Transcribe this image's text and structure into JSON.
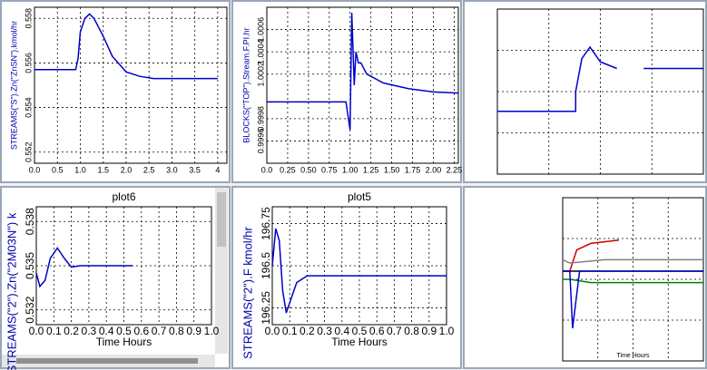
{
  "chart_data": [
    {
      "type": "line",
      "ylabel": "STREAMS(\"S\").Zn(\"ZnSN\").kmol/hr",
      "color": "#0000cc",
      "grid": true,
      "x": [
        0,
        0.5,
        0.9,
        0.95,
        1.0,
        1.1,
        1.2,
        1.3,
        1.5,
        1.7,
        2.0,
        2.3,
        2.6,
        3,
        4
      ],
      "values": [
        0.5557,
        0.5557,
        0.5557,
        0.5562,
        0.5574,
        0.558,
        0.5582,
        0.558,
        0.5572,
        0.5563,
        0.5556,
        0.5554,
        0.5553,
        0.5553,
        0.5553
      ],
      "xlim": [
        0,
        4.2
      ],
      "ylim": [
        0.5515,
        0.5585
      ],
      "xticks": [
        {
          "value": 0,
          "label": "0.0"
        },
        0.5,
        {
          "value": 1,
          "label": "1.0"
        },
        1.5,
        {
          "value": 2,
          "label": "2.0"
        },
        2.5,
        {
          "value": 3,
          "label": "3.0"
        },
        3.5,
        4
      ],
      "yticks": [
        0.552,
        0.554,
        0.556,
        0.558
      ]
    },
    {
      "type": "line",
      "ylabel": "BLOCKS(\"TOP\").Stream.F.PI.hr",
      "color": "#0000cc",
      "grid": true,
      "x": [
        0,
        0.95,
        1.0,
        1.02,
        1.05,
        1.07,
        1.1,
        1.13,
        1.2,
        1.4,
        1.7,
        2.0,
        2.3
      ],
      "values": [
        0.99995,
        0.99995,
        0.9997,
        1.00075,
        1.0001,
        1.0004,
        1.0003,
        1.0003,
        1.0002,
        1.00012,
        1.00007,
        1.00004,
        1.00003
      ],
      "xlim": [
        0,
        2.3
      ],
      "ylim": [
        0.9994,
        1.0008
      ],
      "xticks": [
        {
          "value": 0,
          "label": "0.0"
        },
        0.25,
        {
          "value": 0.5,
          "label": "0.50"
        },
        0.75,
        {
          "value": 1,
          "label": "1.00"
        },
        1.25,
        {
          "value": 1.5,
          "label": "1.50"
        },
        1.75,
        {
          "value": 2,
          "label": "2.00"
        },
        2.25
      ],
      "yticks": [
        0.9996,
        0.9998,
        1.0002,
        1.0004,
        1.0006
      ]
    },
    {
      "type": "line",
      "color": "#0000cc",
      "grid": true,
      "x": [
        0,
        0.38,
        0.38,
        0.41,
        0.45,
        0.5,
        0.58,
        0.64,
        0.71,
        1.0
      ],
      "values": [
        0.38,
        0.38,
        0.5,
        0.7,
        0.77,
        0.68,
        0.64,
        null,
        0.64,
        0.64
      ],
      "xlim": [
        0,
        1
      ],
      "ylim": [
        0,
        1
      ],
      "xticks": [
        0.25,
        0.5,
        0.75
      ],
      "yticks": [
        0.25,
        0.5,
        0.75
      ]
    },
    {
      "type": "line",
      "title": "plot6",
      "ylabel": "STREAMS(\"2\").Zn(\"2M03N\") k",
      "xlabel": "Time Hours",
      "color": "#0000cc",
      "grid": true,
      "x": [
        0,
        0.02,
        0.05,
        0.08,
        0.12,
        0.16,
        0.2,
        0.25,
        0.3,
        0.55
      ],
      "values": [
        0.5345,
        0.5336,
        0.534,
        0.5355,
        0.5362,
        0.5355,
        0.5349,
        0.535,
        0.535,
        0.535
      ],
      "xlim": [
        0,
        1
      ],
      "ylim": [
        0.531,
        0.539
      ],
      "xticks": [
        {
          "value": 0,
          "label": "0.0"
        },
        0.1,
        0.2,
        0.3,
        0.4,
        0.5,
        0.6,
        0.7,
        0.8,
        0.9,
        {
          "value": 1,
          "label": "1.0"
        }
      ],
      "yticks": [
        0.532,
        0.535,
        0.538
      ]
    },
    {
      "type": "line",
      "title": "plot5",
      "ylabel": "STREAMS(\"2\").F kmol/hr",
      "xlabel": "Time Hours",
      "color": "#0000cc",
      "grid": true,
      "x": [
        0,
        0.02,
        0.04,
        0.06,
        0.08,
        0.1,
        0.14,
        0.2,
        0.3,
        1.0
      ],
      "values": [
        196.5,
        196.72,
        196.65,
        196.35,
        196.22,
        196.28,
        196.4,
        196.44,
        196.44,
        196.44
      ],
      "xlim": [
        0,
        1
      ],
      "ylim": [
        196.15,
        196.85
      ],
      "xticks": [
        {
          "value": 0,
          "label": "0.0"
        },
        0.1,
        0.2,
        0.3,
        0.4,
        0.5,
        0.6,
        0.7,
        0.8,
        0.9,
        {
          "value": 1,
          "label": "1.0"
        }
      ],
      "yticks": [
        196.25,
        196.5,
        196.75
      ]
    },
    {
      "type": "line",
      "xlabel": "Time Hours",
      "grid": true,
      "xlim": [
        0,
        1
      ],
      "ylim": [
        0,
        1
      ],
      "xticks": [
        0.25,
        0.5,
        0.75
      ],
      "yticks": [
        0.25,
        0.5,
        0.75
      ],
      "series": [
        {
          "name": "red",
          "color": "#cc0000",
          "x": [
            0,
            0.05,
            0.1,
            0.2,
            0.4
          ],
          "values": [
            0.55,
            0.55,
            0.68,
            0.72,
            0.74
          ]
        },
        {
          "name": "gray",
          "color": "#808080",
          "x": [
            0,
            0.05,
            0.3,
            1
          ],
          "values": [
            0.62,
            0.6,
            0.62,
            0.62
          ]
        },
        {
          "name": "black",
          "color": "#000000",
          "x": [
            0,
            1
          ],
          "values": [
            0.55,
            0.55
          ]
        },
        {
          "name": "green",
          "color": "#008000",
          "x": [
            0,
            0.05,
            0.2,
            1
          ],
          "values": [
            0.5,
            0.5,
            0.48,
            0.48
          ]
        },
        {
          "name": "blue",
          "color": "#0000cc",
          "x": [
            0,
            0.05,
            0.07,
            0.12,
            1
          ],
          "values": [
            0.55,
            0.55,
            0.2,
            0.55,
            0.55
          ]
        }
      ]
    }
  ]
}
